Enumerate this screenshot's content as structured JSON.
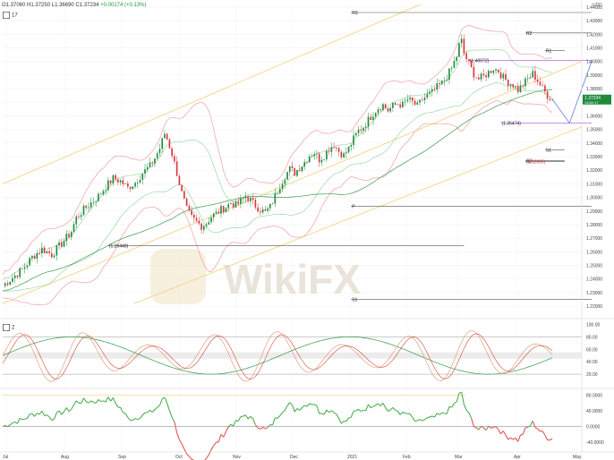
{
  "header": {
    "open": "O1.37060",
    "high": "H1.37250",
    "low": "L1.36690",
    "close": "C1.37234",
    "change": "+0.00174 (+0.13%)",
    "interval": "17",
    "currency": "USD"
  },
  "indicator_tags": {
    "stoch": "2"
  },
  "watermark": "WikiFX",
  "chart_data": {
    "type": "candlestick",
    "x_ticks": [
      "Jul",
      "Aug",
      "Sep",
      "Oct",
      "Nov",
      "Dec",
      "2021",
      "Feb",
      "Mar",
      "Apr",
      "May"
    ],
    "y_ticks": [
      "1.44000",
      "1.43000",
      "1.42000",
      "1.41000",
      "1.40000",
      "1.39000",
      "1.38000",
      "1.37000",
      "1.36000",
      "1.35000",
      "1.34000",
      "1.33000",
      "1.32000",
      "1.31000",
      "1.30000",
      "1.29000",
      "1.28000",
      "1.27000",
      "1.26000",
      "1.25000",
      "1.24000",
      "1.23000",
      "1.22000"
    ],
    "ylim": [
      1.2135,
      1.4406
    ],
    "current_price": "1.37234",
    "current_price_sub": "13:52:17",
    "close_path": [
      [
        0,
        1.235
      ],
      [
        4,
        1.241
      ],
      [
        8,
        1.247
      ],
      [
        12,
        1.256
      ],
      [
        16,
        1.262
      ],
      [
        20,
        1.258
      ],
      [
        24,
        1.266
      ],
      [
        28,
        1.275
      ],
      [
        30,
        1.285
      ],
      [
        33,
        1.291
      ],
      [
        36,
        1.296
      ],
      [
        39,
        1.301
      ],
      [
        42,
        1.308
      ],
      [
        45,
        1.314
      ],
      [
        48,
        1.312
      ],
      [
        51,
        1.307
      ],
      [
        54,
        1.311
      ],
      [
        57,
        1.318
      ],
      [
        60,
        1.323
      ],
      [
        62,
        1.329
      ],
      [
        64,
        1.336
      ],
      [
        66,
        1.347
      ],
      [
        67,
        1.343
      ],
      [
        69,
        1.332
      ],
      [
        71,
        1.318
      ],
      [
        73,
        1.303
      ],
      [
        75,
        1.291
      ],
      [
        77,
        1.285
      ],
      [
        79,
        1.282
      ],
      [
        81,
        1.279
      ],
      [
        83,
        1.281
      ],
      [
        85,
        1.286
      ],
      [
        87,
        1.288
      ],
      [
        89,
        1.291
      ],
      [
        91,
        1.293
      ],
      [
        93,
        1.296
      ],
      [
        95,
        1.294
      ],
      [
        97,
        1.297
      ],
      [
        99,
        1.301
      ],
      [
        101,
        1.298
      ],
      [
        103,
        1.294
      ],
      [
        105,
        1.291
      ],
      [
        107,
        1.289
      ],
      [
        109,
        1.293
      ],
      [
        111,
        1.301
      ],
      [
        113,
        1.309
      ],
      [
        115,
        1.316
      ],
      [
        117,
        1.321
      ],
      [
        119,
        1.318
      ],
      [
        121,
        1.322
      ],
      [
        123,
        1.326
      ],
      [
        125,
        1.331
      ],
      [
        127,
        1.333
      ],
      [
        129,
        1.328
      ],
      [
        131,
        1.331
      ],
      [
        133,
        1.336
      ],
      [
        135,
        1.339
      ],
      [
        137,
        1.334
      ],
      [
        139,
        1.331
      ],
      [
        141,
        1.336
      ],
      [
        143,
        1.343
      ],
      [
        145,
        1.349
      ],
      [
        147,
        1.352
      ],
      [
        149,
        1.357
      ],
      [
        151,
        1.362
      ],
      [
        153,
        1.366
      ],
      [
        155,
        1.368
      ],
      [
        157,
        1.364
      ],
      [
        159,
        1.367
      ],
      [
        161,
        1.369
      ],
      [
        163,
        1.368
      ],
      [
        165,
        1.372
      ],
      [
        167,
        1.37
      ],
      [
        169,
        1.367
      ],
      [
        171,
        1.372
      ],
      [
        173,
        1.375
      ],
      [
        175,
        1.377
      ],
      [
        177,
        1.381
      ],
      [
        179,
        1.384
      ],
      [
        181,
        1.389
      ],
      [
        183,
        1.395
      ],
      [
        185,
        1.404
      ],
      [
        186,
        1.412
      ],
      [
        187,
        1.415
      ],
      [
        188,
        1.406
      ],
      [
        190,
        1.398
      ],
      [
        192,
        1.391
      ],
      [
        194,
        1.387
      ],
      [
        196,
        1.389
      ],
      [
        198,
        1.392
      ],
      [
        200,
        1.395
      ],
      [
        202,
        1.393
      ],
      [
        204,
        1.388
      ],
      [
        206,
        1.385
      ],
      [
        208,
        1.383
      ],
      [
        210,
        1.379
      ],
      [
        212,
        1.383
      ],
      [
        214,
        1.387
      ],
      [
        216,
        1.391
      ],
      [
        218,
        1.386
      ],
      [
        220,
        1.38
      ],
      [
        222,
        1.375
      ],
      [
        224,
        1.3723
      ]
    ],
    "levels": [
      {
        "label": "R3",
        "value": 1.436,
        "x_from": 142,
        "x_to": 240
      },
      {
        "label": "R2",
        "value": 1.421,
        "x_from": 213,
        "x_to": 240
      },
      {
        "label": "R1",
        "value": 1.408,
        "x_from": 221,
        "x_to": 229
      },
      {
        "label": "(1.40072)",
        "value": 1.4007,
        "x_from": 190,
        "x_to": 240
      },
      {
        "label": "(1.35474)",
        "value": 1.3547,
        "x_from": 203,
        "x_to": 240
      },
      {
        "label": "S1",
        "value": 1.335,
        "x_from": 221,
        "x_to": 229
      },
      {
        "label": "S2",
        "value": 1.327,
        "x_from": 213,
        "x_to": 229
      },
      {
        "label": "(1.32635)",
        "value": 1.3264,
        "x_from": 213,
        "x_to": 229
      },
      {
        "label": "P",
        "value": 1.2935,
        "x_from": 142,
        "x_to": 240
      },
      {
        "label": "(1.26448)",
        "value": 1.2645,
        "x_from": 43,
        "x_to": 188
      },
      {
        "label": "S1",
        "value": 1.225,
        "x_from": 142,
        "x_to": 240
      }
    ],
    "stoch_axis": [
      "100.00",
      "80.00",
      "60.00",
      "40.00",
      "20.00"
    ],
    "momentum_axis": [
      "80.0000",
      "40.0000",
      "0.0000",
      "-40.0000"
    ],
    "colors": {
      "up_candle": "#1f8a3c",
      "down_candle": "#d8373e",
      "bb_outer": "#f0a0a8",
      "bb_inner": "#8fd29a",
      "ma_long": "#3a9a4a",
      "channel": "#f3cf7a",
      "forecast": "#6f8fd8",
      "purple": "#b070d0"
    }
  }
}
